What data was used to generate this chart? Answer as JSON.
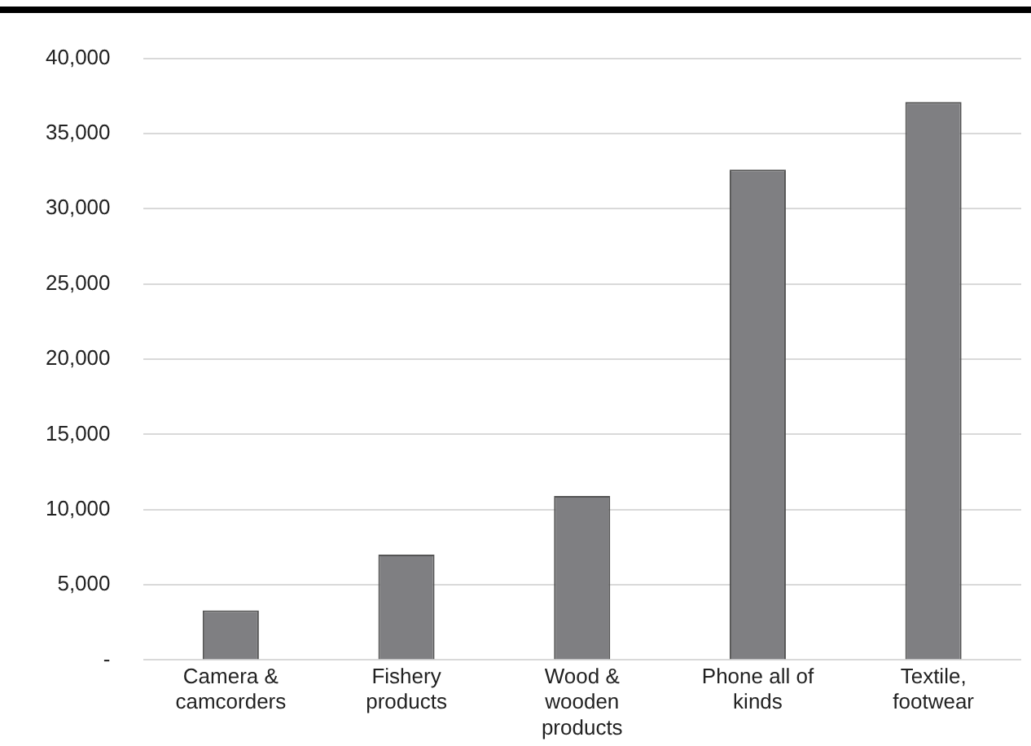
{
  "chart_data": {
    "type": "bar",
    "categories": [
      "Camera & camcorders",
      "Fishery products",
      "Wood & wooden products",
      "Phone all of kinds",
      "Textile, footwear"
    ],
    "values": [
      3300,
      7000,
      10900,
      32600,
      37100
    ],
    "color": "#7f7f82",
    "ylim": [
      0,
      40000
    ],
    "yticks": [
      {
        "value": 0,
        "label": "-"
      },
      {
        "value": 5000,
        "label": "5,000"
      },
      {
        "value": 10000,
        "label": "10,000"
      },
      {
        "value": 15000,
        "label": "15,000"
      },
      {
        "value": 20000,
        "label": "20,000"
      },
      {
        "value": 25000,
        "label": "25,000"
      },
      {
        "value": 30000,
        "label": "30,000"
      },
      {
        "value": 35000,
        "label": "35,000"
      },
      {
        "value": 40000,
        "label": "40,000"
      }
    ],
    "grid": "y",
    "legend": false
  }
}
